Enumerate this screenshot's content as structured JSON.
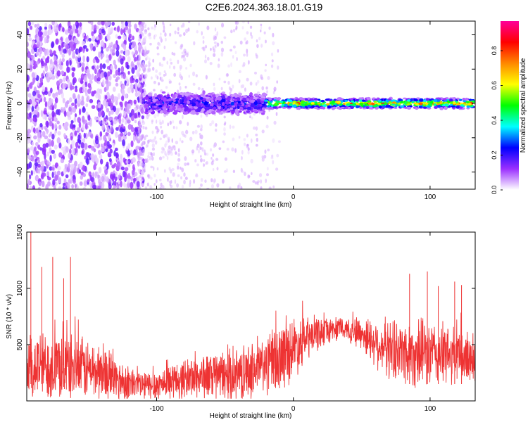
{
  "page": {
    "title": "C2E6.2024.363.18.01.G19"
  },
  "colors": {
    "snr_line": "#ee3333",
    "frame": "#000000",
    "spectrogram_low": "#b080ff",
    "spectrogram_mid": "#3322cc",
    "spectrogram_high": "#ee2222"
  },
  "chart_data": [
    {
      "type": "heatmap",
      "name": "spectrogram",
      "xlabel": "Height of straight line (km)",
      "ylabel": "Frequency (Hz)",
      "xlim": [
        -195,
        133
      ],
      "ylim": [
        -50,
        48
      ],
      "xticks": [
        -100,
        0,
        100
      ],
      "xtick_labels": [
        "-100",
        "0",
        "100"
      ],
      "yticks": [
        -40,
        -20,
        0,
        20,
        40
      ],
      "ytick_labels": [
        "-40",
        "-20",
        "0",
        "20",
        "40"
      ],
      "grid": false,
      "colorbar": {
        "label": "Normalized spectral amplitude",
        "range": [
          0,
          0.97
        ],
        "ticks": [
          0.0,
          0.2,
          0.4,
          0.6,
          0.8
        ],
        "tick_labels": [
          "0.0",
          "0.2",
          "0.4",
          "0.6",
          "0.8"
        ],
        "colormap": [
          "#ffffff",
          "#9b30ff",
          "#0000ff",
          "#00ffff",
          "#00ff00",
          "#ffff00",
          "#ff8800",
          "#ff0000",
          "#ff0099"
        ]
      },
      "features": [
        {
          "region": "noise",
          "x_range": [
            -195,
            -108
          ],
          "freq_range": [
            -50,
            48
          ],
          "amplitude": 0.05
        },
        {
          "region": "band",
          "x_range": [
            -108,
            -20
          ],
          "freq_center": 0,
          "freq_halfwidth": 6,
          "amplitude": 0.2
        },
        {
          "region": "tone",
          "x_range": [
            -20,
            133
          ],
          "freq_center": 0,
          "freq_halfwidth": 1.5,
          "amplitude": 0.9
        }
      ]
    },
    {
      "type": "line",
      "name": "snr",
      "xlabel": "Height of straight line (km)",
      "ylabel": "SNR (10 * v/v)",
      "xlim": [
        -195,
        133
      ],
      "ylim": [
        0,
        1500
      ],
      "xticks": [
        -100,
        0,
        100
      ],
      "xtick_labels": [
        "-100",
        "0",
        "100"
      ],
      "yticks": [
        500,
        1000,
        1500
      ],
      "ytick_labels": [
        "500",
        "1000",
        "1500"
      ],
      "grid": false,
      "series": [
        {
          "x": [
            -195,
            -180,
            -160,
            -140,
            -120,
            -105,
            -90,
            -70,
            -50,
            -35,
            -20,
            -10,
            0,
            10,
            20,
            30,
            40,
            50,
            60,
            70,
            80,
            90,
            100,
            110,
            120,
            133
          ],
          "y": [
            300,
            310,
            300,
            250,
            150,
            130,
            170,
            220,
            220,
            250,
            320,
            380,
            480,
            550,
            610,
            640,
            640,
            600,
            520,
            460,
            440,
            420,
            420,
            410,
            390,
            380
          ],
          "spread": [
            300,
            290,
            270,
            240,
            150,
            130,
            150,
            190,
            210,
            230,
            260,
            300,
            260,
            190,
            130,
            100,
            110,
            150,
            200,
            250,
            280,
            290,
            280,
            260,
            240,
            230
          ]
        }
      ],
      "peaks": [
        [
          -192,
          1500
        ],
        [
          -176,
          1280
        ],
        [
          -163,
          1280
        ],
        [
          -168,
          1090
        ],
        [
          -184,
          1190
        ],
        [
          85,
          1130
        ],
        [
          98,
          1150
        ],
        [
          106,
          1020
        ],
        [
          118,
          1060
        ],
        [
          123,
          1030
        ]
      ]
    }
  ]
}
